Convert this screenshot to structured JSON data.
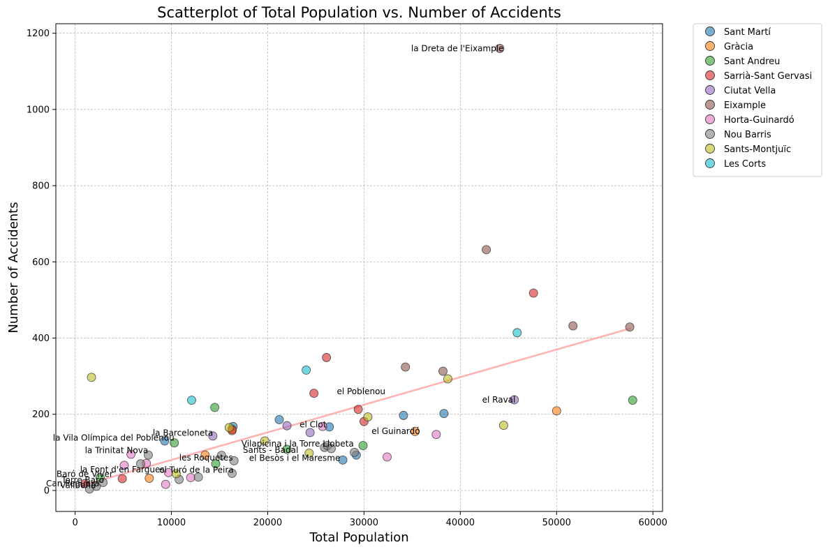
{
  "chart_data": {
    "type": "scatter",
    "title": "Scatterplot of Total Population vs. Number of Accidents",
    "xlabel": "Total Population",
    "ylabel": "Number of Accidents",
    "xlim": [
      -2000,
      61000
    ],
    "ylim": [
      -55,
      1225
    ],
    "xticks": [
      0,
      10000,
      20000,
      30000,
      40000,
      50000,
      60000
    ],
    "yticks": [
      0,
      200,
      400,
      600,
      800,
      1000,
      1200
    ],
    "grid": true,
    "legend_position": "outside-top-right",
    "trendline": {
      "x": [
        1000,
        57600
      ],
      "y": [
        15,
        425
      ],
      "color": "#ff9999"
    },
    "series": [
      {
        "name": "Sant Martí",
        "color": "#1f77b4",
        "points": [
          {
            "x": 9300,
            "y": 130,
            "label": "la Vila Olímpica del Poblenou"
          },
          {
            "x": 16400,
            "y": 168
          },
          {
            "x": 21200,
            "y": 186
          },
          {
            "x": 26400,
            "y": 167
          },
          {
            "x": 27800,
            "y": 80
          },
          {
            "x": 29200,
            "y": 93
          },
          {
            "x": 34100,
            "y": 197
          },
          {
            "x": 38300,
            "y": 202
          }
        ]
      },
      {
        "name": "Gràcia",
        "color": "#ff7f0e",
        "points": [
          {
            "x": 7700,
            "y": 32
          },
          {
            "x": 13500,
            "y": 93
          },
          {
            "x": 16300,
            "y": 157
          },
          {
            "x": 35300,
            "y": 155
          },
          {
            "x": 50000,
            "y": 209
          }
        ]
      },
      {
        "name": "Sant Andreu",
        "color": "#2ca02c",
        "points": [
          {
            "x": 2600,
            "y": 34
          },
          {
            "x": 10300,
            "y": 125
          },
          {
            "x": 14600,
            "y": 70
          },
          {
            "x": 14500,
            "y": 218
          },
          {
            "x": 22000,
            "y": 108
          },
          {
            "x": 29900,
            "y": 118
          },
          {
            "x": 57900,
            "y": 237
          }
        ]
      },
      {
        "name": "Sarrià-Sant Gervasi",
        "color": "#d62728",
        "points": [
          {
            "x": 1000,
            "y": 18
          },
          {
            "x": 4900,
            "y": 31
          },
          {
            "x": 16300,
            "y": 160
          },
          {
            "x": 24800,
            "y": 255
          },
          {
            "x": 26100,
            "y": 349
          },
          {
            "x": 29400,
            "y": 213
          },
          {
            "x": 30000,
            "y": 181
          },
          {
            "x": 47600,
            "y": 518
          }
        ]
      },
      {
        "name": "Ciutat Vella",
        "color": "#9467bd",
        "points": [
          {
            "x": 14300,
            "y": 143
          },
          {
            "x": 22000,
            "y": 170
          },
          {
            "x": 24400,
            "y": 152
          },
          {
            "x": 45600,
            "y": 238
          }
        ]
      },
      {
        "name": "Eixample",
        "color": "#8c564b",
        "points": [
          {
            "x": 34300,
            "y": 324
          },
          {
            "x": 38200,
            "y": 313
          },
          {
            "x": 42700,
            "y": 632
          },
          {
            "x": 44100,
            "y": 1160
          },
          {
            "x": 51700,
            "y": 432
          },
          {
            "x": 57600,
            "y": 429
          }
        ]
      },
      {
        "name": "Horta-Guinardó",
        "color": "#e377c2",
        "points": [
          {
            "x": 5100,
            "y": 66
          },
          {
            "x": 5800,
            "y": 95
          },
          {
            "x": 7400,
            "y": 71
          },
          {
            "x": 9400,
            "y": 16
          },
          {
            "x": 9700,
            "y": 47
          },
          {
            "x": 12000,
            "y": 34
          },
          {
            "x": 25700,
            "y": 168
          },
          {
            "x": 32400,
            "y": 88
          },
          {
            "x": 37500,
            "y": 147
          }
        ]
      },
      {
        "name": "Nou Barris",
        "color": "#7f7f7f",
        "points": [
          {
            "x": 1500,
            "y": 4
          },
          {
            "x": 2200,
            "y": 11
          },
          {
            "x": 2900,
            "y": 21
          },
          {
            "x": 6800,
            "y": 70
          },
          {
            "x": 7600,
            "y": 93
          },
          {
            "x": 10800,
            "y": 29
          },
          {
            "x": 12800,
            "y": 35
          },
          {
            "x": 15200,
            "y": 92
          },
          {
            "x": 16300,
            "y": 45
          },
          {
            "x": 16500,
            "y": 78
          },
          {
            "x": 25900,
            "y": 113
          },
          {
            "x": 26200,
            "y": 118
          },
          {
            "x": 26600,
            "y": 110
          },
          {
            "x": 29000,
            "y": 100
          }
        ]
      },
      {
        "name": "Sants-Montjuïc",
        "color": "#bcbd22",
        "points": [
          {
            "x": 1700,
            "y": 297
          },
          {
            "x": 10500,
            "y": 44
          },
          {
            "x": 16000,
            "y": 165
          },
          {
            "x": 19700,
            "y": 130
          },
          {
            "x": 24300,
            "y": 98
          },
          {
            "x": 30400,
            "y": 193
          },
          {
            "x": 38700,
            "y": 293
          },
          {
            "x": 44500,
            "y": 171
          }
        ]
      },
      {
        "name": "Les Corts",
        "color": "#17becf",
        "points": [
          {
            "x": 12100,
            "y": 237
          },
          {
            "x": 24000,
            "y": 316
          },
          {
            "x": 45900,
            "y": 414
          }
        ]
      }
    ],
    "annotations": [
      {
        "text": "la Dreta de l'Eixample",
        "x": 39700,
        "y": 1160
      },
      {
        "text": "el Raval",
        "x": 44000,
        "y": 238
      },
      {
        "text": "el Poblenou",
        "x": 29700,
        "y": 260
      },
      {
        "text": "el Clot",
        "x": 24700,
        "y": 173
      },
      {
        "text": "el Guinardó",
        "x": 33300,
        "y": 156
      },
      {
        "text": "la Barceloneta",
        "x": 11200,
        "y": 151
      },
      {
        "text": "la Vila Olímpica del Poblenou",
        "x": 4000,
        "y": 138
      },
      {
        "text": "Vilapicina i la Torre Llobeta",
        "x": 23100,
        "y": 123
      },
      {
        "text": "la Trinitat Nova",
        "x": 4300,
        "y": 105
      },
      {
        "text": "Sants - Badal",
        "x": 20300,
        "y": 106
      },
      {
        "text": "les Roquetes",
        "x": 13600,
        "y": 86
      },
      {
        "text": "el Besòs i el Maresme",
        "x": 22800,
        "y": 85
      },
      {
        "text": "la Font d'en Fargues",
        "x": 4900,
        "y": 55
      },
      {
        "text": "el Turó de la Peira",
        "x": 12600,
        "y": 54
      },
      {
        "text": "Baró de Viver",
        "x": 1000,
        "y": 43
      },
      {
        "text": "Torre Baró",
        "x": 800,
        "y": 27
      },
      {
        "text": "Can Peguera",
        "x": -250,
        "y": 18
      },
      {
        "text": "Vallbona",
        "x": 300,
        "y": 14
      }
    ]
  }
}
